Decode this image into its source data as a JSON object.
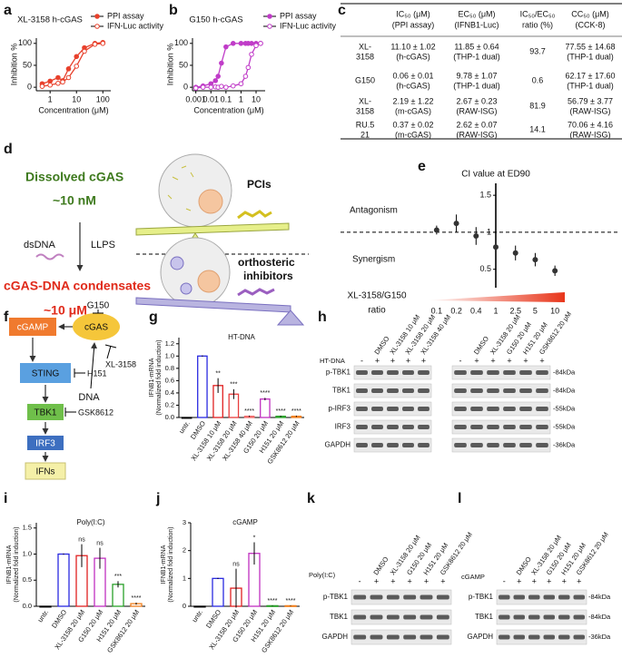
{
  "panel_labels": [
    "a",
    "b",
    "c",
    "d",
    "e",
    "f",
    "g",
    "h",
    "i",
    "j",
    "k",
    "l"
  ],
  "chart_data": [
    {
      "type": "line",
      "title": "XL-3158  h-cGAS",
      "xlabel": "Concentration (μM)",
      "ylabel": "Inhibition %",
      "xscale": "log",
      "x": [
        0.5,
        1,
        2,
        3,
        5,
        10,
        20,
        50,
        100
      ],
      "series": [
        {
          "name": "PPI assay",
          "color": "#e8412c",
          "marker": "filled",
          "values": [
            8,
            14,
            22,
            15,
            42,
            70,
            90,
            100,
            102
          ]
        },
        {
          "name": "IFN-Luc activity",
          "color": "#e8412c",
          "marker": "open",
          "values": [
            2,
            5,
            9,
            12,
            22,
            48,
            82,
            98,
            100
          ]
        }
      ],
      "xlim": [
        0.3,
        200
      ],
      "xticks": [
        1,
        10,
        100
      ],
      "ylim": [
        -8,
        112
      ],
      "yticks": [
        0,
        50,
        100
      ]
    },
    {
      "type": "line",
      "title": "G150  h-cGAS",
      "xlabel": "Concentration (μM)",
      "ylabel": "Inhibition %",
      "xscale": "log",
      "x": [
        0.001,
        0.003,
        0.01,
        0.02,
        0.03,
        0.05,
        0.1,
        0.3,
        1,
        2,
        3,
        5,
        10,
        20
      ],
      "series": [
        {
          "name": "PPI assay",
          "color": "#c03cc8",
          "marker": "filled",
          "values": [
            0,
            3,
            8,
            15,
            25,
            55,
            92,
            100,
            100,
            100,
            100,
            100,
            100,
            100
          ]
        },
        {
          "name": "IFN-Luc activity",
          "color": "#c03cc8",
          "marker": "open",
          "values": [
            -2,
            0,
            0,
            1,
            0,
            2,
            0,
            3,
            8,
            25,
            45,
            75,
            95,
            100
          ]
        }
      ],
      "xlim": [
        0.0006,
        40
      ],
      "xticks": [
        0.001,
        0.01,
        0.1,
        1,
        10
      ],
      "ylim": [
        -8,
        112
      ],
      "yticks": [
        0,
        50,
        100
      ]
    },
    {
      "type": "errorbar",
      "title": "CI value at ED90",
      "categories": [
        "0.1",
        "0.2",
        "0.4",
        "1",
        "2.5",
        "5",
        "10"
      ],
      "values": [
        1.03,
        1.12,
        0.95,
        0.8,
        0.72,
        0.63,
        0.48
      ],
      "errors": [
        0.06,
        0.12,
        0.12,
        0.2,
        0.1,
        0.09,
        0.07
      ],
      "color": "#333333",
      "ylim": [
        0.3,
        1.6
      ],
      "yticks": [
        0.5,
        1,
        1.5
      ],
      "reference_line": 1,
      "annotations": [
        "Antagonism",
        "Synergism"
      ],
      "xlabel": [
        "XL-3158/G150",
        "ratio"
      ]
    },
    {
      "type": "bar",
      "title": "HT-DNA",
      "ylabel": [
        "IFNB1-mRNA",
        "(Normalized fold induction)"
      ],
      "categories": [
        "untr.",
        "DMSO",
        "XL-3158 10 μM",
        "XL-3158 20 μM",
        "XL-3158 40 μM",
        "G150 20 μM",
        "H151 20 μM",
        "GSK8612 20 μM"
      ],
      "values": [
        0,
        1,
        0.52,
        0.38,
        0.02,
        0.3,
        0.02,
        0.02
      ],
      "errors": [
        0,
        0.01,
        0.12,
        0.08,
        0.01,
        0.02,
        0.01,
        0.01
      ],
      "colors": [
        "#000000",
        "#2a2ae0",
        "#e02020",
        "#e83c3c",
        "#f06a6a",
        "#c030c0",
        "#2aa02a",
        "#f07f1e"
      ],
      "annotations": [
        null,
        null,
        "**",
        "***",
        "****",
        "****",
        "****",
        "****"
      ],
      "ylim": [
        0,
        1.3
      ],
      "yticks": [
        {
          "value": 0,
          "label": "0.0"
        },
        0.2,
        0.4,
        0.6,
        0.8,
        {
          "value": 1,
          "label": "1.0"
        },
        1.2
      ]
    },
    {
      "type": "bar",
      "title": "Poly(I:C)",
      "ylabel": [
        "IFNB1-mRNA",
        "(Normalized fold induction)"
      ],
      "categories": [
        "untr.",
        "DMSO",
        "XL-3158 20 μM",
        "G150 20 μM",
        "H151 20 μM",
        "GSK8612 20 μM"
      ],
      "values": [
        0,
        1,
        0.97,
        0.92,
        0.42,
        0.05
      ],
      "errors": [
        0,
        0.01,
        0.22,
        0.2,
        0.06,
        0.02
      ],
      "colors": [
        "#000000",
        "#2a2ae0",
        "#e02020",
        "#c030c0",
        "#2aa02a",
        "#f07f1e"
      ],
      "annotations": [
        null,
        null,
        "ns",
        "ns",
        "***",
        "****"
      ],
      "ylim": [
        0,
        1.6
      ],
      "yticks": [
        {
          "value": 0,
          "label": "0.0"
        },
        0.5,
        {
          "value": 1,
          "label": "1.0"
        },
        1.5
      ]
    },
    {
      "type": "bar",
      "title": "cGAMP",
      "ylabel": [
        "IFNB1-mRNA",
        "(Normalized fold induction)"
      ],
      "categories": [
        "untr.",
        "DMSO",
        "XL-3158 20 μM",
        "G150 20 μM",
        "H151 20 μM",
        "GSK8612 20 μM"
      ],
      "values": [
        0,
        1,
        0.65,
        1.9,
        0.02,
        0.02
      ],
      "errors": [
        0,
        0.02,
        0.7,
        0.4,
        0.01,
        0.01
      ],
      "colors": [
        "#000000",
        "#2a2ae0",
        "#e02020",
        "#c030c0",
        "#2aa02a",
        "#f07f1e"
      ],
      "annotations": [
        null,
        null,
        "ns",
        "*",
        "****",
        "****"
      ],
      "ylim": [
        0,
        3
      ],
      "yticks": [
        0,
        1,
        2,
        3
      ]
    }
  ],
  "table": {
    "header": [
      [
        "IC₅₀ (μM)",
        "(PPI assay)"
      ],
      [
        "EC₅₀ (μM)",
        "(IFNB1-Luc)"
      ],
      [
        "IC₅₀/EC₅₀",
        "ratio (%)"
      ],
      [
        "CC₅₀ (μM)",
        "(CCK-8)"
      ]
    ],
    "rows": [
      [
        [
          "XL-",
          "3158"
        ],
        [
          "11.10 ± 1.02",
          "(h-cGAS)"
        ],
        [
          "11.85 ± 0.64",
          "(THP-1 dual)"
        ],
        [
          "93.7"
        ],
        [
          "77.55 ± 14.68",
          "(THP-1 dual)"
        ]
      ],
      [
        [
          "G150"
        ],
        [
          "0.06 ± 0.01",
          "(h-cGAS)"
        ],
        [
          "9.78 ± 1.07",
          "(THP-1 dual)"
        ],
        [
          "0.6"
        ],
        [
          "62.17 ± 17.60",
          "(THP-1 dual)"
        ]
      ],
      [
        [
          "XL-",
          "3158"
        ],
        [
          "2.19 ± 1.22",
          "(m-cGAS)"
        ],
        [
          "2.67 ± 0.23",
          "(RAW-ISG)"
        ],
        [
          "81.9"
        ],
        [
          "56.79 ± 3.77",
          "(RAW-ISG)"
        ]
      ],
      [
        [
          "RU.5",
          "21"
        ],
        [
          "0.37 ± 0.02",
          "(m-cGAS)"
        ],
        [
          "2.62 ± 0.07",
          "(RAW-ISG)"
        ],
        [
          "14.1"
        ],
        [
          "70.06 ± 4.16",
          "(RAW-ISG)"
        ]
      ]
    ]
  },
  "diagram_d": {
    "dissolved": "Dissolved cGAS",
    "dissolved_conc": "~10 nM",
    "dsdna": "dsDNA",
    "llps": "LLPS",
    "condensates": "cGAS-DNA condensates",
    "condensates_conc": "~10 μM",
    "pcis": "PCIs",
    "orthosteric": [
      "orthosteric",
      "inhibitors"
    ]
  },
  "diagram_f": {
    "nodes": [
      "cGAMP",
      "cGAS",
      "STING",
      "TBK1",
      "IRF3",
      "IFNs"
    ],
    "inhibitors": [
      "G150",
      "XL-3158",
      "H151",
      "GSK8612"
    ],
    "dna": "DNA"
  },
  "blots": [
    {
      "stimulus": "HT-DNA",
      "groups": [
        {
          "columns": [
            null,
            "DMSO",
            "XL-3158 10 μM",
            "XL-3158 20 μM",
            "XL-3158 40 μM"
          ],
          "signs": [
            "-",
            "+",
            "+",
            "+",
            "+"
          ]
        },
        {
          "columns": [
            null,
            "DMSO",
            "XL-3158 20 μM",
            "G150 20 μM",
            "H151 20 μM",
            "GSK8612 20 μM"
          ],
          "signs": [
            "-",
            "+",
            "+",
            "+",
            "+",
            "+"
          ]
        }
      ],
      "rows": [
        "p-TBK1",
        "TBK1",
        "p-IRF3",
        "IRF3",
        "GAPDH"
      ],
      "kda": [
        "-84kDa",
        "-84kDa",
        "-55kDa",
        "-55kDa",
        "-36kDa"
      ]
    },
    {
      "stimulus": "Poly(I:C)",
      "groups": [
        {
          "columns": [
            null,
            "DMSO",
            "XL-3158 20 μM",
            "G150 20 μM",
            "H151 20 μM",
            "GSK8612 20 μM"
          ],
          "signs": [
            "-",
            "+",
            "+",
            "+",
            "+",
            "+"
          ]
        }
      ],
      "rows": [
        "p-TBK1",
        "TBK1",
        "GAPDH"
      ]
    },
    {
      "stimulus": "cGAMP",
      "groups": [
        {
          "columns": [
            null,
            "DMSO",
            "XL-3158 20 μM",
            "G150 20 μM",
            "H151 20 μM",
            "GSK8612 20 μM"
          ],
          "signs": [
            "-",
            "+",
            "+",
            "+",
            "+",
            "+"
          ]
        }
      ],
      "rows": [
        "p-TBK1",
        "TBK1",
        "GAPDH"
      ],
      "kda": [
        "-84kDa",
        "-84kDa",
        "-36kDa"
      ]
    }
  ]
}
